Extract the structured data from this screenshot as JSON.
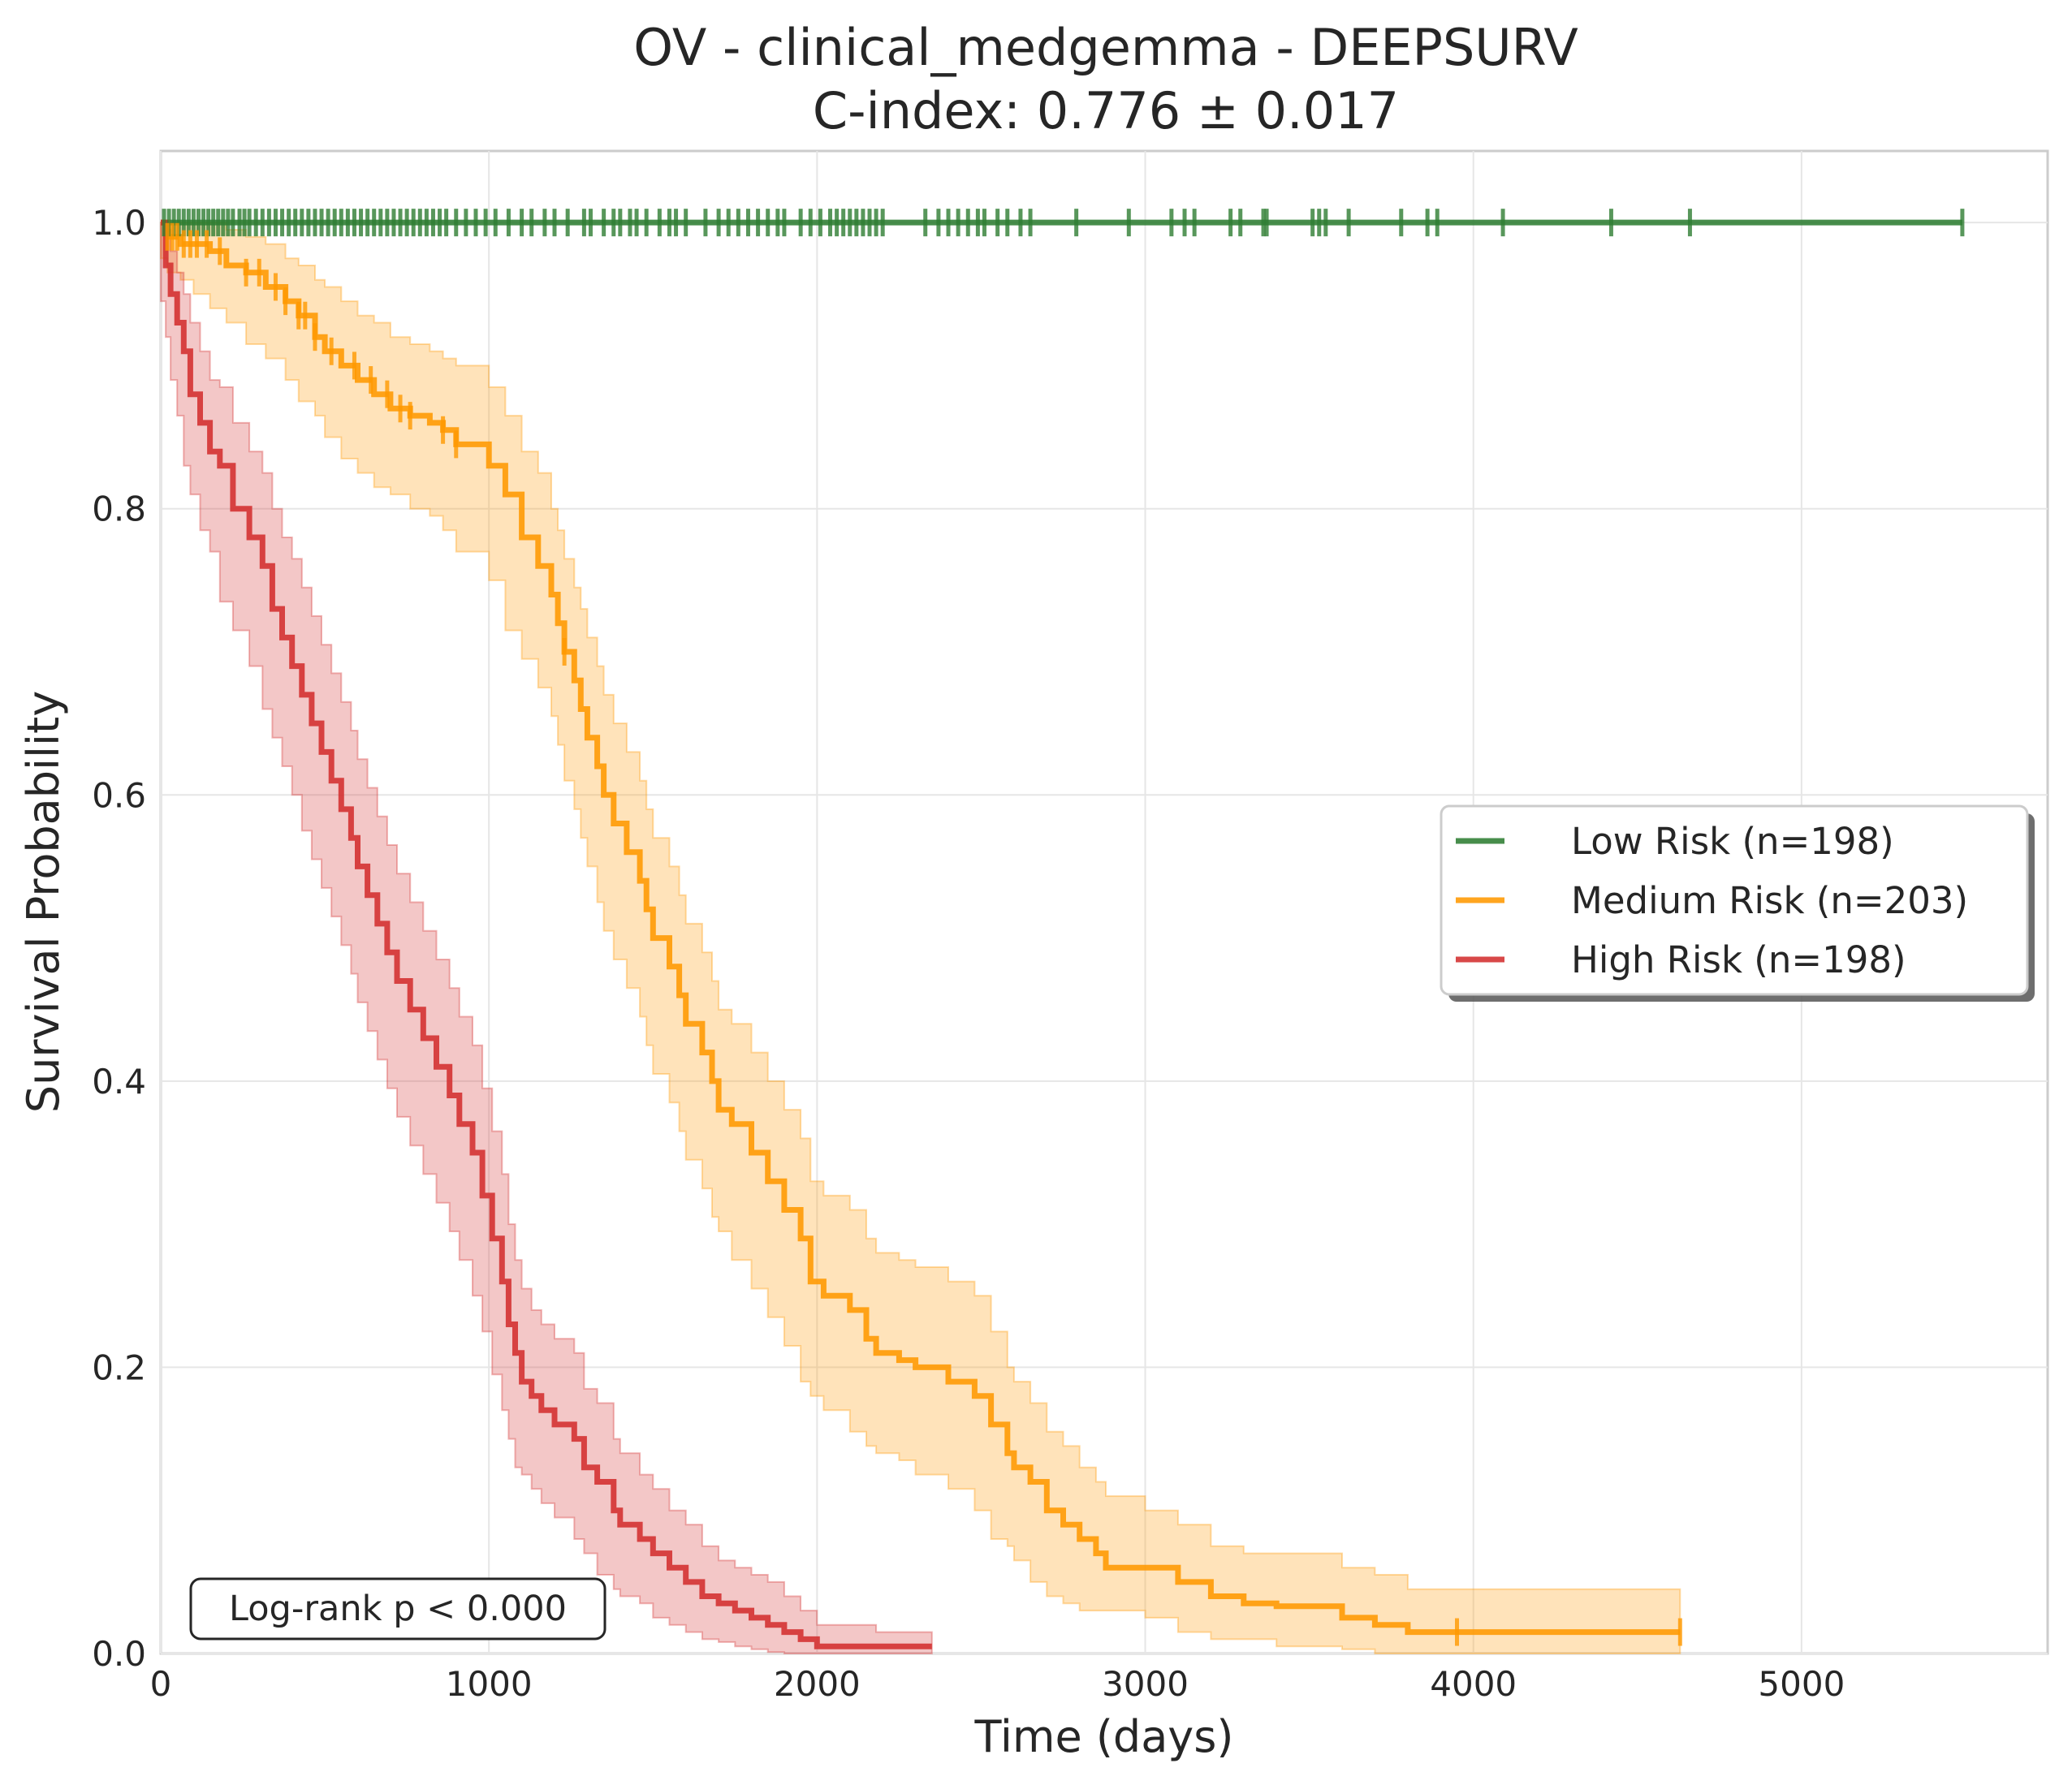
{
  "chart_data": {
    "type": "line",
    "subtype": "kaplan-meier survival curves",
    "title": "OV - clinical_medgemma - DEEPSURV",
    "subtitle": "C-index: 0.776 ± 0.017",
    "xlabel": "Time (days)",
    "ylabel": "Survival Probability",
    "xlim": [
      0,
      5750
    ],
    "ylim": [
      0,
      1.05
    ],
    "xticks": [
      0,
      1000,
      2000,
      3000,
      4000,
      5000
    ],
    "xtick_labels": [
      "0",
      "1000",
      "2000",
      "3000",
      "4000",
      "5000"
    ],
    "yticks": [
      0,
      0.2,
      0.4,
      0.6,
      0.8,
      1.0
    ],
    "ytick_labels": [
      "0.0",
      "0.2",
      "0.4",
      "0.6",
      "0.8",
      "1.0"
    ],
    "grid": true,
    "legend_position": "center-right",
    "annotation": "Log-rank p < 0.000",
    "series": [
      {
        "name": "Low Risk (n=198)",
        "color": "#2e7d32",
        "x": [
          0,
          5490
        ],
        "y": [
          1.0,
          1.0
        ],
        "ci_lower": [],
        "ci_upper": [],
        "censor_times": [
          10,
          25,
          40,
          55,
          70,
          85,
          100,
          115,
          130,
          145,
          160,
          175,
          190,
          205,
          220,
          240,
          255,
          270,
          290,
          310,
          330,
          350,
          370,
          390,
          410,
          430,
          450,
          470,
          490,
          510,
          530,
          550,
          570,
          590,
          610,
          630,
          650,
          670,
          690,
          710,
          730,
          750,
          770,
          790,
          810,
          830,
          850,
          870,
          900,
          930,
          960,
          990,
          1020,
          1060,
          1100,
          1130,
          1170,
          1200,
          1240,
          1290,
          1310,
          1350,
          1380,
          1400,
          1430,
          1450,
          1480,
          1520,
          1550,
          1570,
          1600,
          1660,
          1700,
          1730,
          1760,
          1790,
          1820,
          1850,
          1880,
          1900,
          1950,
          1980,
          2010,
          2040,
          2060,
          2080,
          2100,
          2120,
          2140,
          2160,
          2180,
          2200,
          2330,
          2370,
          2400,
          2430,
          2460,
          2490,
          2510,
          2550,
          2580,
          2620,
          2650,
          2790,
          2950,
          3080,
          3120,
          3150,
          3260,
          3290,
          3360,
          3370,
          3510,
          3530,
          3550,
          3620,
          3780,
          3860,
          3890,
          4090,
          4420,
          4660,
          5490
        ]
      },
      {
        "name": "Medium Risk (n=203)",
        "color": "#ff9800",
        "x": [
          0,
          20,
          60,
          100,
          150,
          200,
          260,
          320,
          380,
          420,
          470,
          500,
          550,
          600,
          650,
          700,
          760,
          820,
          860,
          900,
          1000,
          1050,
          1100,
          1150,
          1190,
          1210,
          1230,
          1260,
          1280,
          1300,
          1330,
          1350,
          1380,
          1420,
          1460,
          1480,
          1500,
          1550,
          1580,
          1600,
          1650,
          1680,
          1700,
          1740,
          1800,
          1850,
          1900,
          1950,
          1980,
          2020,
          2100,
          2150,
          2180,
          2250,
          2300,
          2400,
          2480,
          2530,
          2580,
          2600,
          2650,
          2700,
          2750,
          2800,
          2850,
          2880,
          3000,
          3100,
          3200,
          3300,
          3400,
          3600,
          3700,
          3800,
          3950,
          4630
        ],
        "y": [
          1.0,
          0.99,
          0.985,
          0.985,
          0.98,
          0.97,
          0.965,
          0.955,
          0.945,
          0.935,
          0.92,
          0.91,
          0.9,
          0.89,
          0.88,
          0.87,
          0.865,
          0.86,
          0.855,
          0.845,
          0.83,
          0.81,
          0.78,
          0.76,
          0.74,
          0.72,
          0.7,
          0.68,
          0.66,
          0.64,
          0.62,
          0.6,
          0.58,
          0.56,
          0.54,
          0.52,
          0.5,
          0.48,
          0.46,
          0.44,
          0.42,
          0.4,
          0.38,
          0.37,
          0.35,
          0.33,
          0.31,
          0.29,
          0.26,
          0.25,
          0.24,
          0.22,
          0.21,
          0.205,
          0.2,
          0.19,
          0.18,
          0.16,
          0.14,
          0.13,
          0.12,
          0.1,
          0.09,
          0.08,
          0.07,
          0.06,
          0.06,
          0.05,
          0.04,
          0.035,
          0.033,
          0.025,
          0.02,
          0.015,
          0.015,
          0.015
        ],
        "ci_lower": [
          1.0,
          0.975,
          0.965,
          0.96,
          0.95,
          0.94,
          0.93,
          0.915,
          0.905,
          0.89,
          0.875,
          0.865,
          0.85,
          0.835,
          0.825,
          0.815,
          0.81,
          0.8,
          0.795,
          0.785,
          0.77,
          0.75,
          0.715,
          0.695,
          0.675,
          0.655,
          0.635,
          0.61,
          0.59,
          0.57,
          0.55,
          0.525,
          0.505,
          0.485,
          0.465,
          0.445,
          0.425,
          0.405,
          0.385,
          0.365,
          0.345,
          0.325,
          0.305,
          0.295,
          0.275,
          0.255,
          0.235,
          0.215,
          0.19,
          0.18,
          0.17,
          0.155,
          0.145,
          0.14,
          0.135,
          0.125,
          0.115,
          0.1,
          0.08,
          0.075,
          0.065,
          0.05,
          0.04,
          0.035,
          0.03,
          0.03,
          0.03,
          0.025,
          0.015,
          0.01,
          0.01,
          0.005,
          0.003,
          0.0,
          0.0,
          0.0
        ],
        "ci_upper": [
          1.0,
          1.0,
          1.0,
          1.0,
          1.0,
          0.995,
          0.99,
          0.985,
          0.975,
          0.97,
          0.96,
          0.955,
          0.945,
          0.935,
          0.93,
          0.92,
          0.915,
          0.91,
          0.905,
          0.9,
          0.885,
          0.865,
          0.84,
          0.825,
          0.8,
          0.785,
          0.765,
          0.745,
          0.73,
          0.71,
          0.69,
          0.67,
          0.65,
          0.63,
          0.61,
          0.59,
          0.57,
          0.55,
          0.53,
          0.51,
          0.49,
          0.47,
          0.45,
          0.44,
          0.42,
          0.4,
          0.38,
          0.36,
          0.33,
          0.32,
          0.31,
          0.29,
          0.28,
          0.275,
          0.27,
          0.26,
          0.25,
          0.225,
          0.2,
          0.19,
          0.175,
          0.155,
          0.145,
          0.13,
          0.12,
          0.11,
          0.1,
          0.09,
          0.075,
          0.07,
          0.07,
          0.06,
          0.055,
          0.045,
          0.045,
          0.045
        ],
        "censor_times": [
          20,
          35,
          50,
          70,
          90,
          110,
          140,
          180,
          260,
          300,
          350,
          380,
          420,
          440,
          470,
          520,
          590,
          640,
          690,
          730,
          760,
          860,
          900,
          1230,
          3950,
          4630
        ]
      },
      {
        "name": "High Risk (n=198)",
        "color": "#d32f2f",
        "x": [
          0,
          15,
          30,
          50,
          70,
          90,
          120,
          150,
          180,
          220,
          270,
          310,
          340,
          370,
          400,
          430,
          460,
          490,
          520,
          550,
          580,
          600,
          630,
          660,
          690,
          720,
          760,
          800,
          840,
          880,
          910,
          950,
          980,
          1010,
          1040,
          1060,
          1080,
          1100,
          1130,
          1160,
          1200,
          1260,
          1290,
          1330,
          1380,
          1400,
          1460,
          1500,
          1550,
          1600,
          1650,
          1700,
          1750,
          1800,
          1850,
          1900,
          1950,
          2000,
          2100,
          2180,
          2350
        ],
        "y": [
          1.0,
          0.97,
          0.95,
          0.93,
          0.91,
          0.88,
          0.86,
          0.84,
          0.83,
          0.8,
          0.78,
          0.76,
          0.73,
          0.71,
          0.69,
          0.67,
          0.65,
          0.63,
          0.61,
          0.59,
          0.57,
          0.55,
          0.53,
          0.51,
          0.49,
          0.47,
          0.45,
          0.43,
          0.41,
          0.39,
          0.37,
          0.35,
          0.32,
          0.29,
          0.26,
          0.23,
          0.21,
          0.19,
          0.18,
          0.17,
          0.16,
          0.15,
          0.13,
          0.12,
          0.1,
          0.09,
          0.08,
          0.07,
          0.06,
          0.05,
          0.04,
          0.035,
          0.03,
          0.025,
          0.02,
          0.015,
          0.01,
          0.005,
          0.005,
          0.005,
          0.005
        ],
        "ci_lower": [
          1.0,
          0.945,
          0.92,
          0.89,
          0.865,
          0.83,
          0.81,
          0.785,
          0.77,
          0.735,
          0.715,
          0.69,
          0.66,
          0.64,
          0.62,
          0.6,
          0.575,
          0.555,
          0.535,
          0.515,
          0.495,
          0.475,
          0.455,
          0.435,
          0.415,
          0.395,
          0.375,
          0.355,
          0.335,
          0.315,
          0.295,
          0.275,
          0.25,
          0.225,
          0.195,
          0.17,
          0.15,
          0.13,
          0.125,
          0.115,
          0.105,
          0.095,
          0.08,
          0.07,
          0.055,
          0.045,
          0.04,
          0.035,
          0.025,
          0.02,
          0.015,
          0.01,
          0.008,
          0.005,
          0.003,
          0.001,
          0.0,
          0.0,
          0.0,
          0.0,
          0.0
        ],
        "ci_upper": [
          1.0,
          0.995,
          0.98,
          0.965,
          0.95,
          0.93,
          0.91,
          0.89,
          0.885,
          0.86,
          0.84,
          0.825,
          0.8,
          0.78,
          0.765,
          0.745,
          0.725,
          0.705,
          0.685,
          0.665,
          0.645,
          0.625,
          0.605,
          0.585,
          0.565,
          0.545,
          0.525,
          0.505,
          0.485,
          0.465,
          0.445,
          0.425,
          0.395,
          0.365,
          0.335,
          0.3,
          0.275,
          0.255,
          0.24,
          0.23,
          0.22,
          0.21,
          0.185,
          0.175,
          0.15,
          0.14,
          0.125,
          0.115,
          0.1,
          0.09,
          0.075,
          0.065,
          0.06,
          0.055,
          0.05,
          0.04,
          0.03,
          0.02,
          0.02,
          0.015,
          0.015
        ],
        "censor_times": []
      }
    ]
  }
}
